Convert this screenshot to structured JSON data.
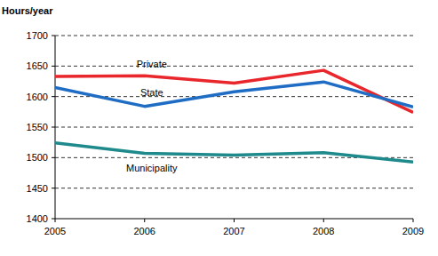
{
  "chart_data": {
    "type": "line",
    "ylabel": "Hours/year",
    "categories": [
      "2005",
      "2006",
      "2007",
      "2008",
      "2009"
    ],
    "series": [
      {
        "name": "Private",
        "color": "#e8262b",
        "values": [
          1633,
          1634,
          1622,
          1643,
          1574
        ]
      },
      {
        "name": "State",
        "color": "#1f6cc4",
        "values": [
          1615,
          1584,
          1608,
          1624,
          1583
        ]
      },
      {
        "name": "Municipality",
        "color": "#1e8a8c",
        "values": [
          1524,
          1507,
          1504,
          1508,
          1493
        ]
      }
    ],
    "ylim": [
      1400,
      1700
    ],
    "yticks": [
      1400,
      1450,
      1500,
      1550,
      1600,
      1650,
      1700
    ],
    "grid": true
  }
}
